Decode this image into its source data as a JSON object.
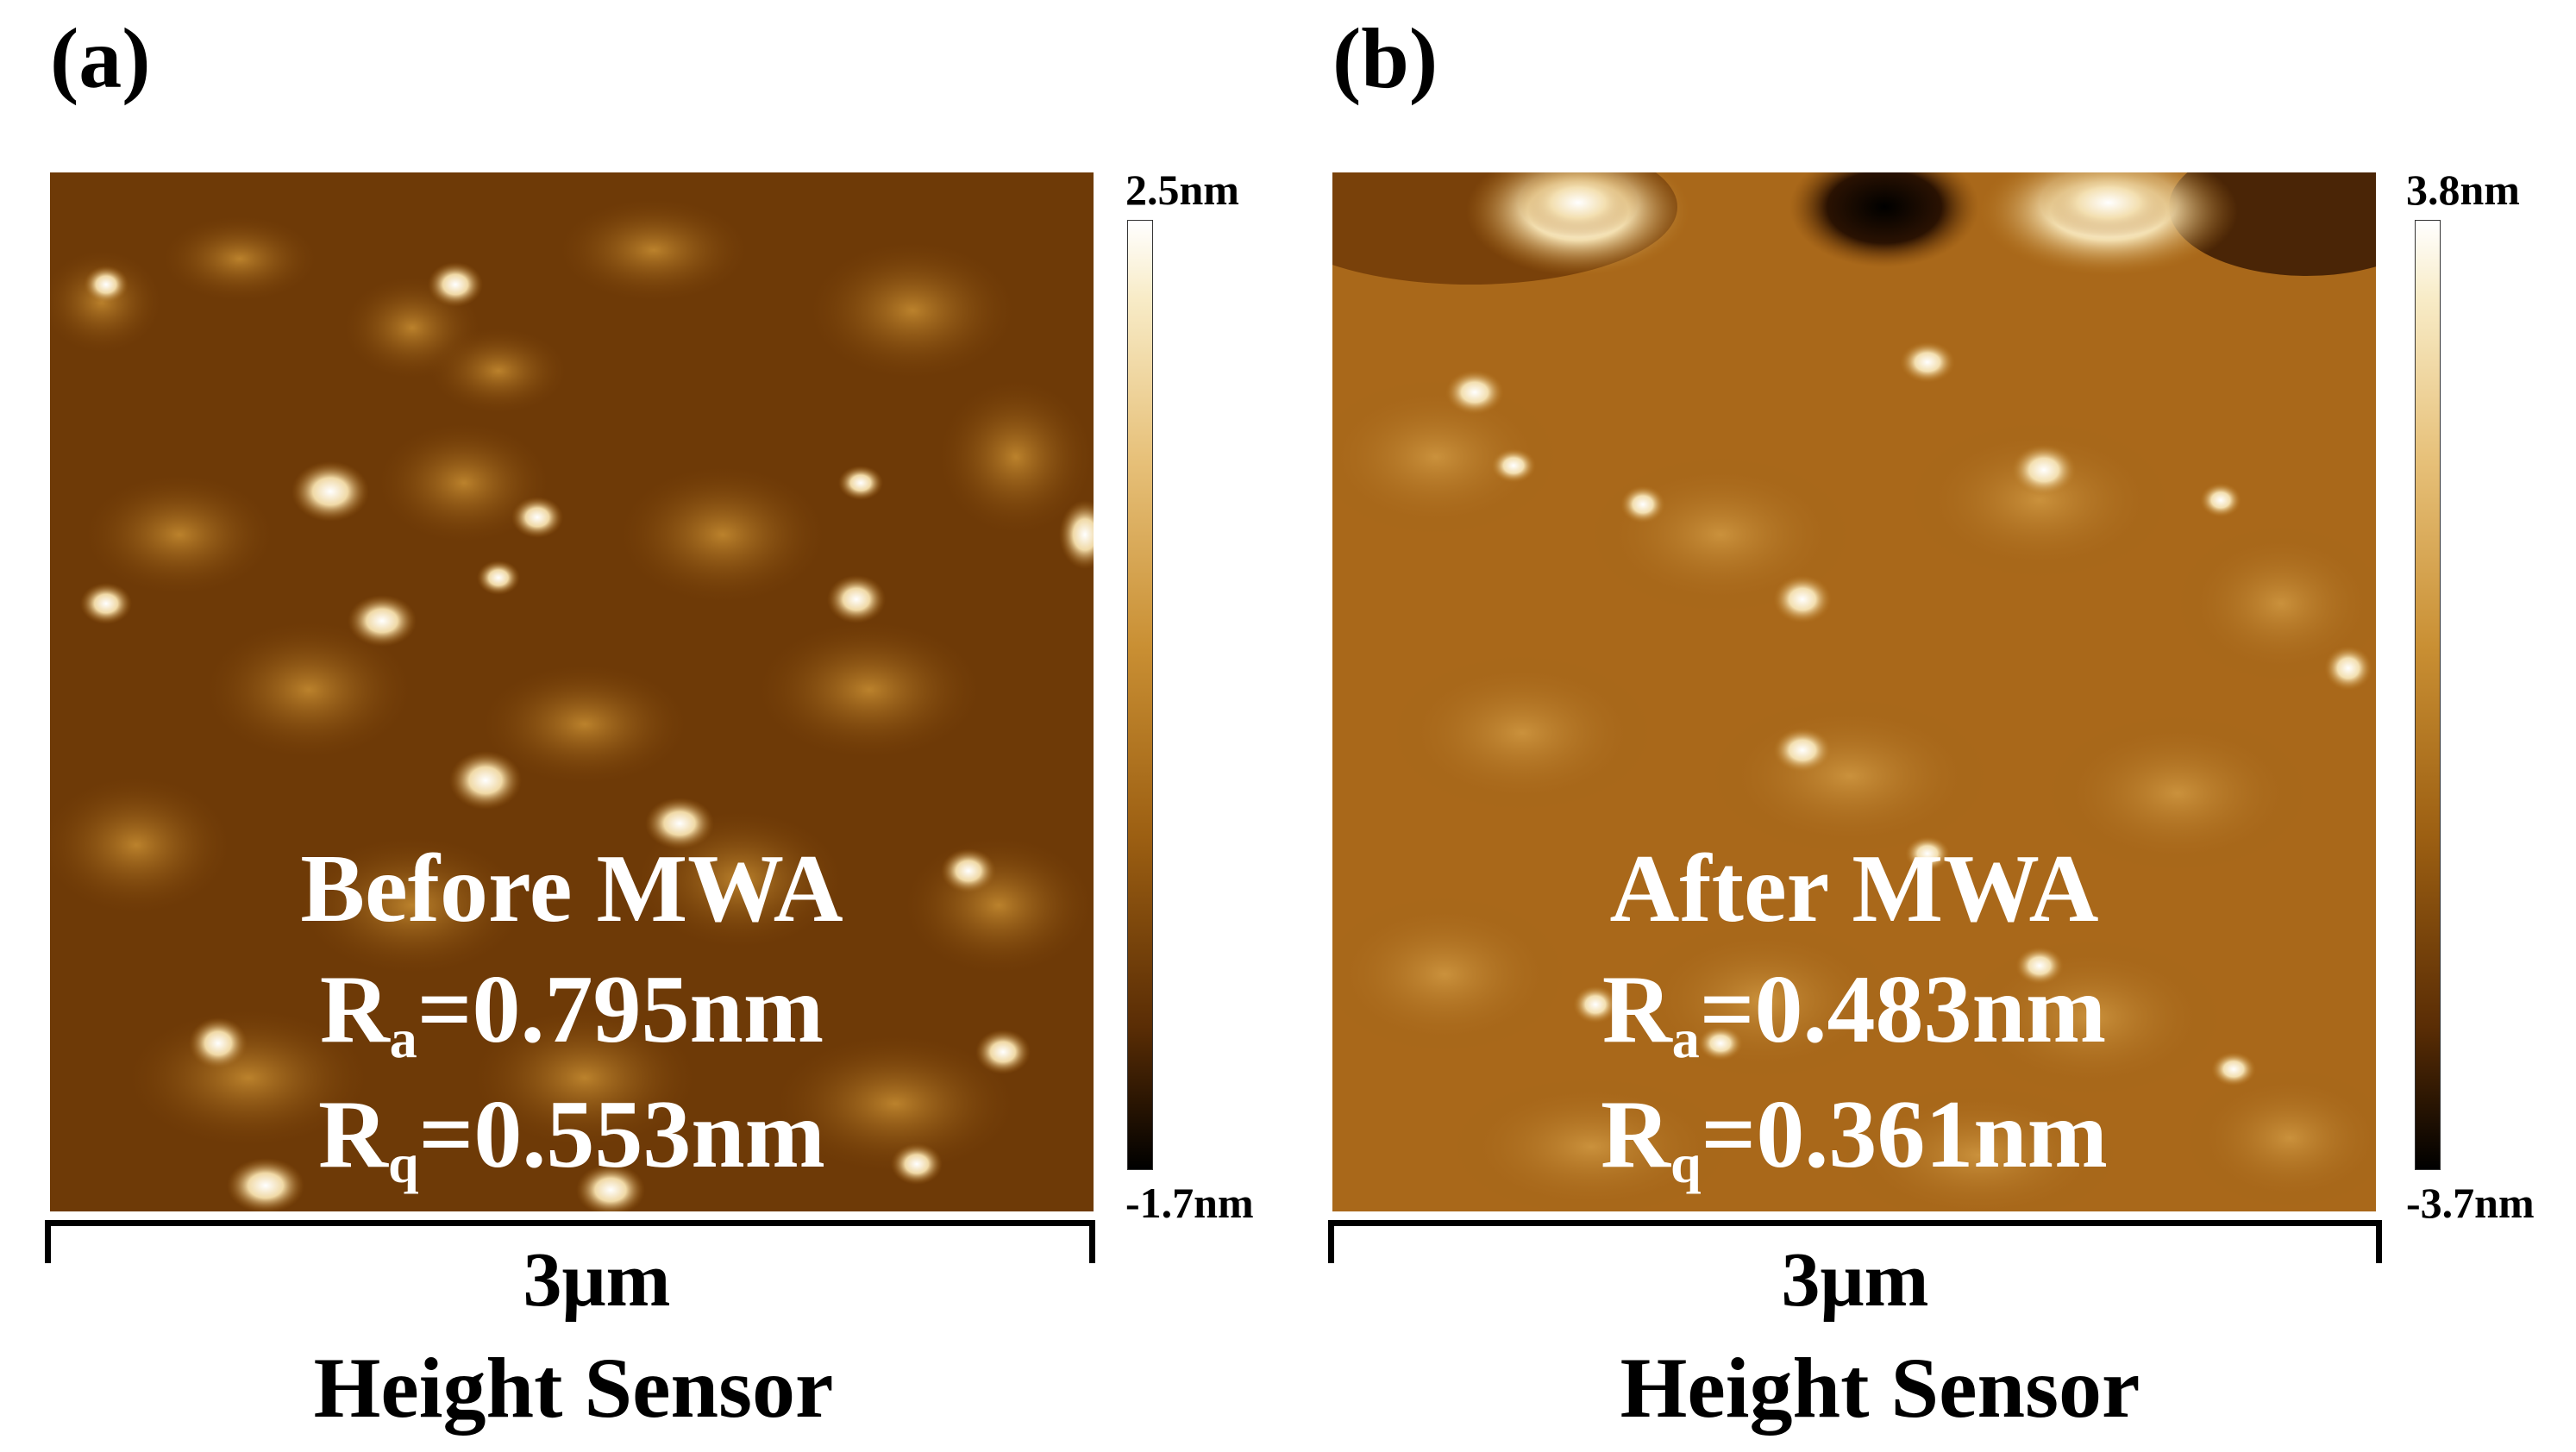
{
  "panels": [
    {
      "label": "(a)",
      "title": "Before MWA",
      "ra_prefix": "R",
      "ra_sub": "a",
      "ra_value": "=0.795nm",
      "rq_prefix": "R",
      "rq_sub": "q",
      "rq_value": "=0.553nm",
      "colorbar_max": "2.5nm",
      "colorbar_min": "-1.7nm",
      "scale": "3μm",
      "mode": "Height Sensor"
    },
    {
      "label": "(b)",
      "title": "After MWA",
      "ra_prefix": "R",
      "ra_sub": "a",
      "ra_value": "=0.483nm",
      "rq_prefix": "R",
      "rq_sub": "q",
      "rq_value": "=0.361nm",
      "colorbar_max": "3.8nm",
      "colorbar_min": "-3.7nm",
      "scale": "3μm",
      "mode": "Height Sensor"
    }
  ]
}
